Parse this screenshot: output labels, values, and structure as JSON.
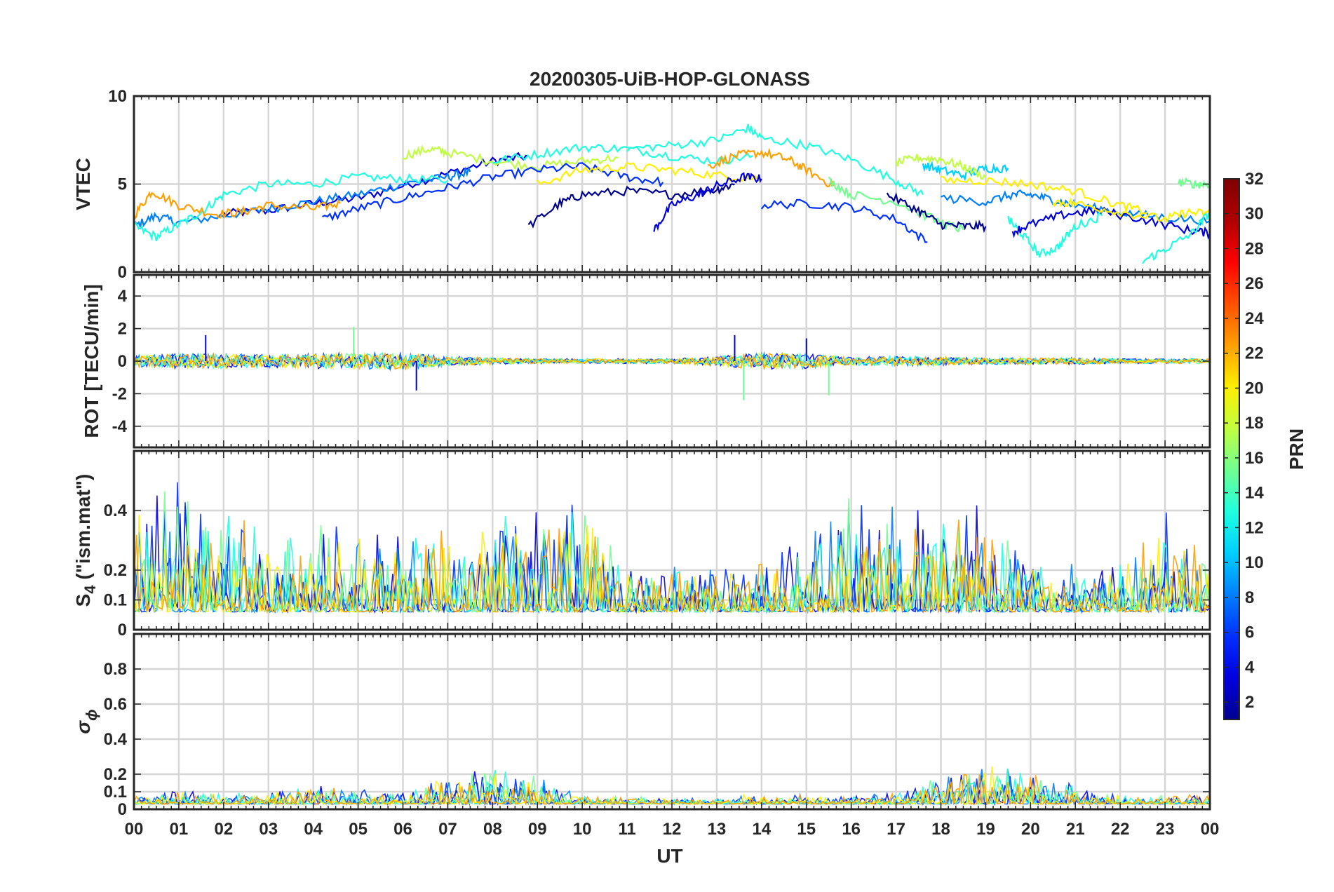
{
  "chart_data": {
    "type": "line",
    "title": "20200305-UiB-HOP-GLONASS",
    "xlabel": "UT",
    "x_tick_labels": [
      "00",
      "01",
      "02",
      "03",
      "04",
      "05",
      "06",
      "07",
      "08",
      "09",
      "10",
      "11",
      "12",
      "13",
      "14",
      "15",
      "16",
      "17",
      "18",
      "19",
      "20",
      "21",
      "22",
      "23",
      "00"
    ],
    "xlim_hours": [
      0,
      24
    ],
    "grid": true,
    "colorbar": {
      "label": "PRN",
      "colormap": "jet",
      "range": [
        1,
        32
      ],
      "tick_labels": [
        "2",
        "4",
        "6",
        "8",
        "10",
        "12",
        "14",
        "16",
        "18",
        "20",
        "22",
        "24",
        "26",
        "28",
        "30",
        "32"
      ],
      "colors": [
        "#00008f",
        "#0000df",
        "#0030ff",
        "#0080ff",
        "#00d0ff",
        "#20ffdf",
        "#70ff8f",
        "#c0ff40",
        "#ffef00",
        "#ffa000",
        "#ff5000",
        "#ff0000",
        "#af0000",
        "#800000"
      ]
    },
    "panels": [
      {
        "id": "vtec",
        "ylabel": "VTEC",
        "ylim": [
          0,
          10
        ],
        "yticks": [
          0,
          5,
          10
        ],
        "ytick_labels": [
          "0",
          "5",
          "10"
        ],
        "series": [
          {
            "prn": 3,
            "x": [
              2.0,
              3.0,
              4.0,
              5.0,
              6.0,
              7.0,
              8.0,
              8.8
            ],
            "y": [
              3.3,
              3.5,
              3.9,
              4.2,
              4.9,
              5.6,
              6.3,
              6.6
            ]
          },
          {
            "prn": 8,
            "x": [
              0.0,
              0.5,
              1.0,
              2.0,
              3.0,
              4.0,
              5.0,
              6.0,
              7.0,
              7.5
            ],
            "y": [
              2.6,
              3.2,
              2.8,
              3.2,
              3.6,
              4.0,
              4.4,
              5.0,
              5.4,
              5.7
            ]
          },
          {
            "prn": 13,
            "x": [
              0.0,
              0.5,
              1.0,
              1.5,
              2.0,
              3.0,
              4.0,
              5.0,
              6.0,
              7.0
            ],
            "y": [
              2.6,
              2.0,
              2.7,
              3.4,
              4.4,
              5.0,
              5.0,
              5.4,
              5.3,
              5.2
            ]
          },
          {
            "prn": 22,
            "x": [
              0.0,
              0.4,
              1.0,
              1.8,
              2.4,
              3.0,
              4.0,
              4.6
            ],
            "y": [
              3.2,
              4.6,
              3.8,
              3.3,
              3.4,
              3.8,
              3.6,
              3.9
            ]
          },
          {
            "prn": 17,
            "x": [
              6.0,
              6.6,
              7.0,
              8.0,
              9.0,
              10.0,
              10.8
            ],
            "y": [
              6.6,
              7.0,
              6.8,
              6.3,
              6.0,
              6.3,
              6.5
            ]
          },
          {
            "prn": 5,
            "x": [
              4.2,
              5.0,
              6.0,
              7.0,
              8.0,
              9.0,
              10.0,
              11.0,
              11.8
            ],
            "y": [
              3.0,
              3.6,
              4.2,
              4.8,
              5.4,
              5.8,
              6.0,
              5.4,
              5.1
            ]
          },
          {
            "prn": 2,
            "x": [
              8.8,
              9.5,
              10.0,
              11.0,
              12.0,
              13.0,
              13.4
            ],
            "y": [
              2.6,
              3.9,
              4.4,
              4.6,
              4.4,
              4.7,
              5.0
            ]
          },
          {
            "prn": 12,
            "x": [
              8.0,
              9.0,
              10.0,
              11.0,
              12.0,
              13.0,
              13.8
            ],
            "y": [
              6.3,
              6.7,
              7.1,
              7.0,
              6.6,
              6.3,
              6.6
            ]
          },
          {
            "prn": 20,
            "x": [
              9.0,
              10.0,
              11.0,
              12.0,
              13.0,
              14.0
            ],
            "y": [
              5.0,
              5.8,
              6.0,
              5.8,
              5.5,
              5.3
            ]
          },
          {
            "prn": 22,
            "x": [
              12.8,
              13.4,
              14.0,
              14.6,
              15.0,
              15.6
            ],
            "y": [
              6.0,
              6.6,
              6.8,
              6.4,
              5.8,
              4.9
            ]
          },
          {
            "prn": 14,
            "x": [
              11.0,
              12.0,
              13.0,
              13.7,
              14.0,
              15.0,
              16.0,
              17.0,
              17.6
            ],
            "y": [
              7.0,
              7.2,
              7.5,
              8.2,
              7.6,
              7.2,
              6.4,
              5.2,
              4.4
            ]
          },
          {
            "prn": 4,
            "x": [
              11.6,
              12.0,
              12.6,
              13.0,
              13.6,
              14.0
            ],
            "y": [
              2.4,
              3.8,
              4.4,
              4.9,
              5.4,
              5.3
            ]
          },
          {
            "prn": 6,
            "x": [
              14.0,
              15.0,
              16.0,
              17.0,
              17.7
            ],
            "y": [
              3.8,
              3.9,
              3.7,
              3.0,
              1.7
            ]
          },
          {
            "prn": 10,
            "x": [
              17.6,
              18.0,
              18.5,
              19.0,
              19.5
            ],
            "y": [
              6.1,
              5.8,
              5.5,
              5.9,
              5.9
            ]
          },
          {
            "prn": 16,
            "x": [
              15.5,
              16.0,
              17.0,
              18.0,
              18.5
            ],
            "y": [
              5.2,
              4.4,
              4.0,
              2.8,
              2.4
            ]
          },
          {
            "prn": 17,
            "x": [
              17.0,
              17.5,
              18.0,
              18.5,
              19.0
            ],
            "y": [
              6.2,
              6.5,
              6.4,
              6.0,
              5.4
            ]
          },
          {
            "prn": 1,
            "x": [
              16.8,
              17.5,
              18.0,
              18.5,
              19.0
            ],
            "y": [
              4.4,
              3.5,
              2.7,
              2.6,
              2.6
            ]
          },
          {
            "prn": 8,
            "x": [
              18.0,
              19.0,
              19.6,
              20.0,
              20.5,
              21.0,
              22.0,
              23.0,
              24.0
            ],
            "y": [
              4.2,
              4.0,
              4.4,
              4.4,
              4.1,
              3.8,
              3.4,
              3.1,
              2.9
            ]
          },
          {
            "prn": 19,
            "x": [
              18.0,
              19.0,
              20.0,
              21.0,
              22.0,
              22.6
            ],
            "y": [
              5.2,
              5.2,
              5.0,
              4.6,
              3.8,
              3.4
            ]
          },
          {
            "prn": 12,
            "x": [
              19.5,
              19.8,
              20.2,
              20.6,
              21.0,
              21.6
            ],
            "y": [
              3.0,
              2.2,
              1.0,
              1.4,
              2.6,
              3.2
            ]
          },
          {
            "prn": 3,
            "x": [
              19.6,
              20.0,
              20.8,
              21.5,
              22.5,
              23.5,
              24.0
            ],
            "y": [
              2.3,
              2.7,
              3.3,
              3.5,
              3.0,
              2.4,
              2.2
            ]
          },
          {
            "prn": 19,
            "x": [
              20.5,
              21.0,
              22.0,
              23.0,
              23.5,
              24.0
            ],
            "y": [
              4.0,
              3.9,
              3.4,
              3.0,
              3.4,
              3.3
            ]
          },
          {
            "prn": 13,
            "x": [
              22.5,
              23.0,
              23.6,
              24.0
            ],
            "y": [
              0.6,
              1.3,
              2.2,
              3.4
            ]
          },
          {
            "prn": 15,
            "x": [
              23.3,
              23.7,
              24.0
            ],
            "y": [
              5.1,
              5.0,
              5.0
            ]
          }
        ]
      },
      {
        "id": "rot",
        "ylabel": "ROT [TECU/min]",
        "ylim": [
          -5.3,
          5.3
        ],
        "yticks": [
          -4,
          -2,
          0,
          2,
          4
        ],
        "ytick_labels": [
          "-4",
          "-2",
          "0",
          "2",
          "4"
        ],
        "noise_profile": {
          "x": [
            0,
            1,
            2,
            3,
            4,
            5,
            6,
            7,
            8,
            9,
            10,
            11,
            12,
            13,
            14,
            15,
            16,
            17,
            18,
            19,
            20,
            21,
            22,
            23,
            24
          ],
          "amplitude": [
            0.35,
            0.45,
            0.45,
            0.4,
            0.45,
            0.5,
            0.5,
            0.3,
            0.2,
            0.15,
            0.15,
            0.15,
            0.15,
            0.3,
            0.5,
            0.45,
            0.25,
            0.3,
            0.25,
            0.2,
            0.2,
            0.2,
            0.15,
            0.15,
            0.15
          ]
        },
        "spikes": [
          {
            "x": 1.6,
            "y": 1.6
          },
          {
            "x": 4.9,
            "y": 2.1
          },
          {
            "x": 6.3,
            "y": -1.8
          },
          {
            "x": 13.6,
            "y": -2.4
          },
          {
            "x": 13.4,
            "y": 1.6
          },
          {
            "x": 15.5,
            "y": -2.1
          },
          {
            "x": 15.0,
            "y": 1.4
          }
        ]
      },
      {
        "id": "s4",
        "ylabel": "S4 (\"ism.mat\")",
        "ylim": [
          0,
          0.6
        ],
        "yticks": [
          0,
          0.1,
          0.2,
          0.4
        ],
        "ytick_labels": [
          "0",
          "0.1",
          "0.2",
          "0.4"
        ],
        "baseline": 0.06,
        "noise_profile": {
          "x": [
            0,
            1,
            2,
            3,
            4,
            5,
            6,
            7,
            8,
            9,
            10,
            11,
            12,
            13,
            14,
            15,
            16,
            17,
            18,
            19,
            20,
            21,
            22,
            23,
            24
          ],
          "amplitude": [
            0.3,
            0.35,
            0.25,
            0.25,
            0.25,
            0.2,
            0.2,
            0.25,
            0.25,
            0.35,
            0.3,
            0.15,
            0.12,
            0.12,
            0.15,
            0.2,
            0.3,
            0.3,
            0.3,
            0.25,
            0.15,
            0.12,
            0.15,
            0.25,
            0.2
          ]
        }
      },
      {
        "id": "sigma_phi",
        "ylabel": "σ ϕ",
        "ylim": [
          0,
          1
        ],
        "yticks": [
          0,
          0.1,
          0.2,
          0.4,
          0.6,
          0.8
        ],
        "ytick_labels": [
          "0",
          "0.1",
          "0.2",
          "0.4",
          "0.6",
          "0.8"
        ],
        "baseline": 0.03,
        "noise_profile": {
          "x": [
            0,
            1,
            2,
            3,
            4,
            5,
            6,
            7,
            8,
            9,
            10,
            11,
            12,
            13,
            14,
            15,
            16,
            17,
            18,
            19,
            20,
            21,
            22,
            23,
            24
          ],
          "amplitude": [
            0.04,
            0.06,
            0.05,
            0.05,
            0.09,
            0.07,
            0.06,
            0.12,
            0.18,
            0.14,
            0.04,
            0.04,
            0.03,
            0.04,
            0.04,
            0.04,
            0.04,
            0.05,
            0.15,
            0.18,
            0.15,
            0.08,
            0.04,
            0.04,
            0.05
          ]
        }
      }
    ]
  }
}
